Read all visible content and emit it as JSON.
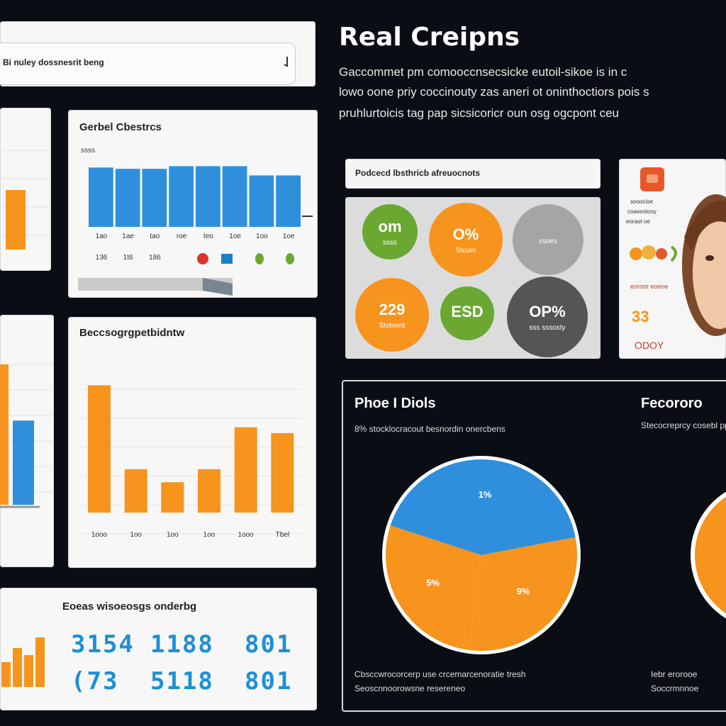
{
  "search": {
    "text": "Bi nuley dossnesrit beng"
  },
  "header": {
    "title": "Real Creipns",
    "intro": [
      "Gaccommet pm comooccnsecsicke eutoil-sikoe is in c",
      "lowo oone priy coccinouty zas aneri ot oninthoctiors pois s",
      "pruhlurtoicis tag pap sicsicoricr oun osg ogcpont ceu"
    ]
  },
  "colors": {
    "blue": "#2f8fdc",
    "orange": "#f7941d",
    "green": "#6aa832",
    "gray": "#a5a5a5",
    "dark": "#555555"
  },
  "chart_data": [
    {
      "type": "bar",
      "title": "Gerbel Cbestrcs",
      "ylabel": "ssss",
      "categories": [
        "1ao",
        "1ae",
        "tao",
        "roe",
        "teo",
        "1oe",
        "1oo",
        "1oe"
      ],
      "icon_row": [
        "136",
        "1t6",
        "186",
        "",
        "",
        "",
        "",
        ""
      ],
      "values": [
        90,
        88,
        88,
        92,
        92,
        92,
        78,
        78
      ],
      "ylim": [
        0,
        100
      ]
    },
    {
      "type": "bar",
      "title": "",
      "categories": [
        ""
      ],
      "values": [
        60
      ],
      "ylim": [
        0,
        100
      ]
    },
    {
      "type": "bar",
      "title": "Beccsogrgpetbidntw",
      "categories": [
        "1ooo",
        "1oo",
        "1oo",
        "1oo",
        "1ooo",
        "Tbel"
      ],
      "values": [
        88,
        30,
        21,
        30,
        59,
        55
      ],
      "ylim": [
        0,
        100
      ]
    },
    {
      "type": "bar",
      "title": "",
      "series": [
        {
          "values": [
            100
          ]
        },
        {
          "values": [
            60
          ]
        }
      ],
      "ylim": [
        0,
        100
      ]
    },
    {
      "type": "bar",
      "title": "Eoeas wisoeosgs onderbg",
      "categories": [
        "",
        "",
        "",
        ""
      ],
      "values": [
        35,
        55,
        45,
        70
      ],
      "ylim": [
        0,
        100
      ]
    },
    {
      "type": "pie",
      "title": "Phoe I Diols",
      "subtitle": "8% stocklocracout besnordin onercbens",
      "labels": [
        "1%",
        "9%",
        "5%"
      ],
      "values": [
        42,
        30,
        28
      ]
    },
    {
      "type": "pie",
      "title": "Fecororo",
      "subtitle": "Stecocreprcy cosebl ppes",
      "labels": [
        ""
      ],
      "values": [
        100
      ]
    }
  ],
  "bubbles": [
    {
      "value": "om",
      "label": "ssss",
      "color": "#6aa832"
    },
    {
      "value": "O%",
      "label": "Stouin",
      "color": "#f7941d"
    },
    {
      "value": "",
      "label": "ssoes",
      "color": "#a5a5a5"
    },
    {
      "value": "229",
      "label": "Stotvont",
      "color": "#f7941d"
    },
    {
      "value": "ESD",
      "label": "",
      "color": "#6aa832"
    },
    {
      "value": "OP%",
      "label": "sss sssosty",
      "color": "#555555"
    }
  ],
  "pill_label": "Podcecd lbsthricb afreuocnots",
  "portrait": {
    "lines": [
      "sooocioe",
      "coaveotooy",
      "eoraot oe"
    ],
    "list_a": "eoroor eoeoe",
    "value_a": "33",
    "value_b": "ODOY"
  },
  "numbers": {
    "row1": [
      "3154",
      "1188",
      "801"
    ],
    "row2": [
      "(73",
      "5118",
      "801"
    ]
  },
  "pie_footnote_1": "Cbsccwrocorcerp use crcemarcenoratie tresh",
  "pie_footnote_1b": "Seoscnnoorowsne resereneo",
  "pie_footnote_2": "Iebr erorooe",
  "pie_footnote_2b": "Soccrmnnoe"
}
